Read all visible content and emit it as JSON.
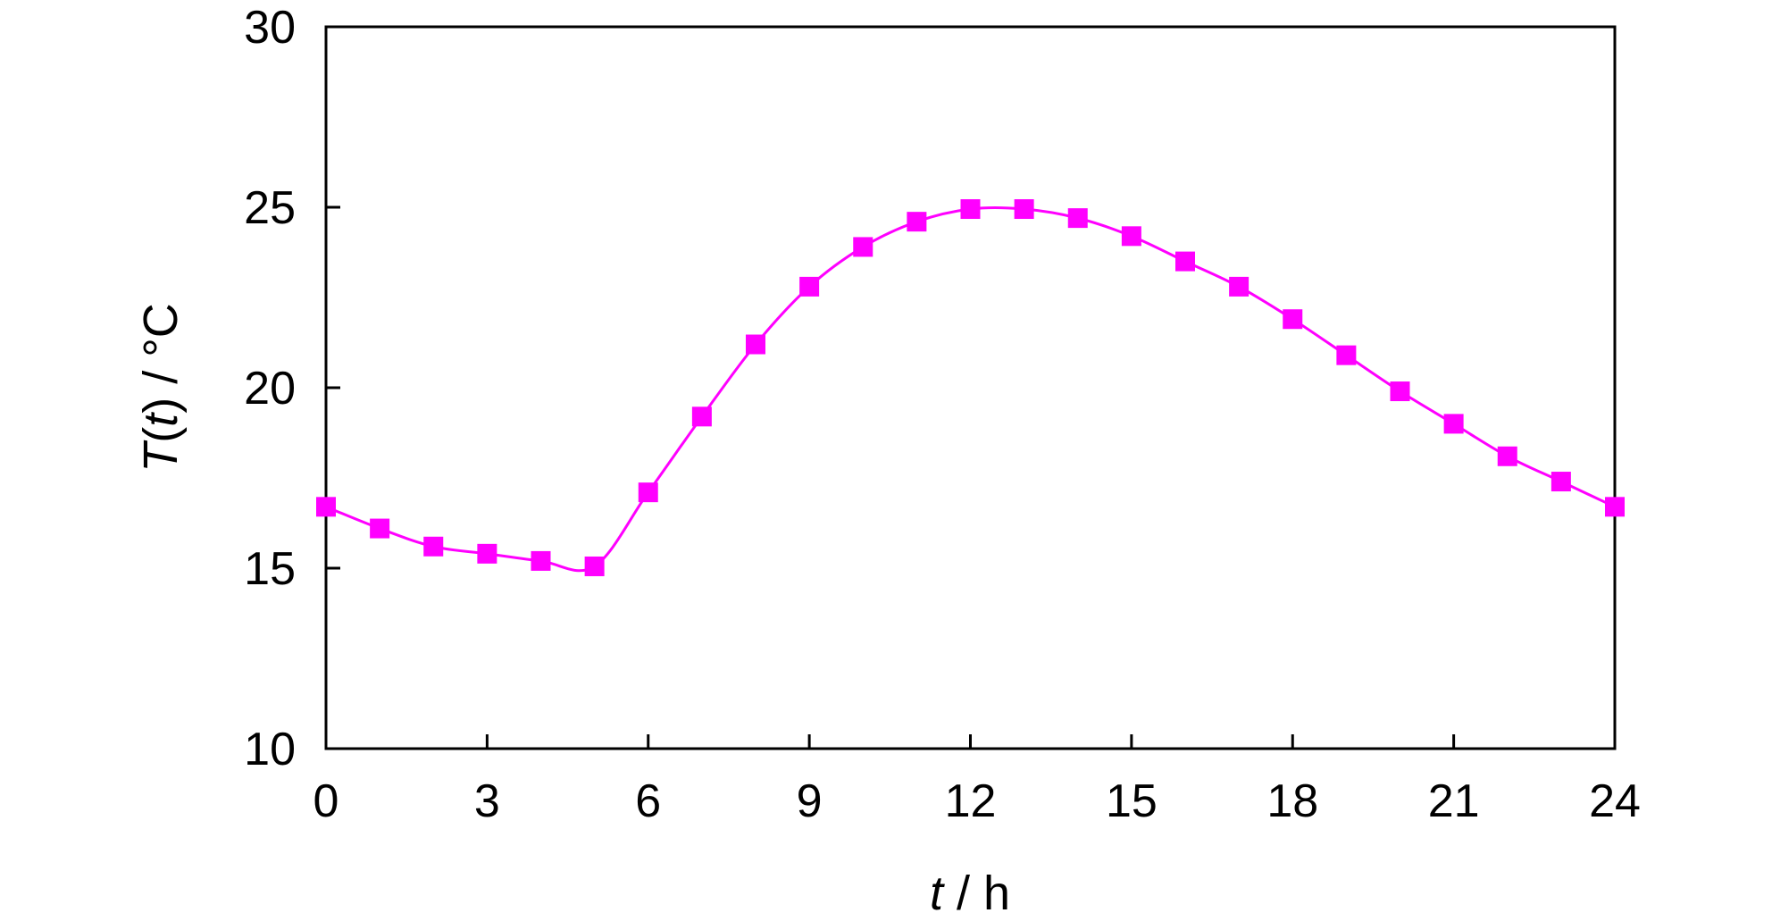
{
  "chart_data": {
    "type": "line",
    "title": "",
    "xlabel": {
      "var": "t",
      "sep": " / ",
      "unit": "h"
    },
    "ylabel": {
      "func": "T",
      "open": "(",
      "var": "t",
      "close": ")",
      "sep": " / ",
      "unit": "°C"
    },
    "xlim": [
      0,
      24
    ],
    "ylim": [
      10,
      30
    ],
    "xticks": [
      0,
      3,
      6,
      9,
      12,
      15,
      18,
      21,
      24
    ],
    "yticks": [
      10,
      15,
      20,
      25,
      30
    ],
    "grid": false,
    "series": [
      {
        "color": "#ff00ff",
        "marker": "square",
        "x": [
          0,
          1,
          2,
          3,
          4,
          5,
          6,
          7,
          8,
          9,
          10,
          11,
          12,
          13,
          14,
          15,
          16,
          17,
          18,
          19,
          20,
          21,
          22,
          23,
          24
        ],
        "y": [
          16.7,
          16.1,
          15.6,
          15.4,
          15.2,
          15.05,
          17.1,
          19.2,
          21.2,
          22.8,
          23.9,
          24.6,
          24.95,
          24.95,
          24.7,
          24.2,
          23.5,
          22.8,
          21.9,
          20.9,
          19.9,
          19.0,
          18.1,
          17.4,
          16.7
        ]
      }
    ]
  }
}
